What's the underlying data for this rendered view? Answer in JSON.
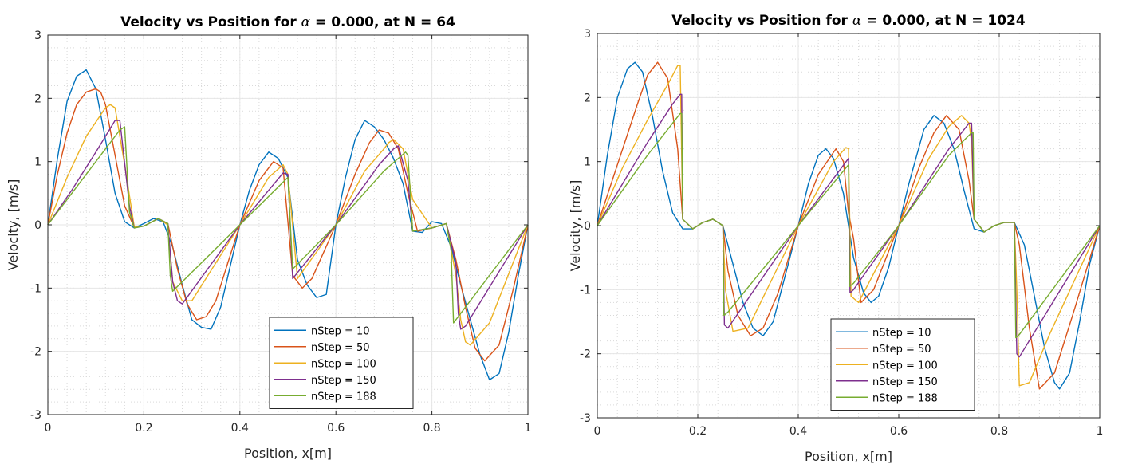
{
  "chart_data": [
    {
      "type": "line",
      "title_prefix": "Velocity vs Position for ",
      "title_alpha": "α",
      "title_suffix": " = 0.000, at N = 64",
      "xlabel": "Position, x[m]",
      "ylabel": "Velocity, [m/s]",
      "xlim": [
        0,
        1
      ],
      "ylim": [
        -3,
        3
      ],
      "xticks": [
        0,
        0.2,
        0.4,
        0.6,
        0.8,
        1
      ],
      "xtick_labels": [
        "0",
        "0.2",
        "0.4",
        "0.6",
        "0.8",
        "1"
      ],
      "yticks": [
        -3,
        -2,
        -1,
        0,
        1,
        2,
        3
      ],
      "ytick_labels": [
        "-3",
        "-2",
        "-1",
        "0",
        "1",
        "2",
        "3"
      ],
      "grid": true,
      "minor_grid": true,
      "legend_position": "bottom-right",
      "series": [
        {
          "name": "nStep = 10",
          "color": "#0072bd",
          "x": [
            0,
            0.02,
            0.04,
            0.06,
            0.08,
            0.1,
            0.12,
            0.14,
            0.16,
            0.18,
            0.2,
            0.22,
            0.24,
            0.26,
            0.28,
            0.3,
            0.32,
            0.34,
            0.36,
            0.38,
            0.4,
            0.42,
            0.44,
            0.46,
            0.48,
            0.5,
            0.52,
            0.54,
            0.56,
            0.58,
            0.6,
            0.62,
            0.64,
            0.66,
            0.68,
            0.7,
            0.72,
            0.74,
            0.76,
            0.78,
            0.8,
            0.82,
            0.84,
            0.86,
            0.88,
            0.9,
            0.92,
            0.94,
            0.96,
            0.98,
            1
          ],
          "y": [
            0,
            1.05,
            1.95,
            2.35,
            2.45,
            2.15,
            1.35,
            0.5,
            0.05,
            -0.05,
            0.02,
            0.1,
            0.05,
            -0.35,
            -0.95,
            -1.5,
            -1.62,
            -1.65,
            -1.3,
            -0.65,
            0,
            0.55,
            0.95,
            1.15,
            1.05,
            0.75,
            -0.55,
            -0.95,
            -1.15,
            -1.1,
            0,
            0.75,
            1.35,
            1.65,
            1.55,
            1.35,
            1.05,
            0.65,
            -0.1,
            -0.12,
            0.05,
            0.02,
            -0.35,
            -0.95,
            -1.5,
            -2.05,
            -2.45,
            -2.35,
            -1.7,
            -0.8,
            0
          ]
        },
        {
          "name": "nStep = 50",
          "color": "#d95319",
          "x": [
            0,
            0.02,
            0.04,
            0.06,
            0.08,
            0.1,
            0.11,
            0.12,
            0.14,
            0.16,
            0.18,
            0.2,
            0.23,
            0.25,
            0.27,
            0.29,
            0.31,
            0.33,
            0.35,
            0.4,
            0.44,
            0.47,
            0.49,
            0.51,
            0.53,
            0.55,
            0.6,
            0.64,
            0.67,
            0.69,
            0.71,
            0.73,
            0.75,
            0.77,
            0.8,
            0.83,
            0.85,
            0.87,
            0.89,
            0.91,
            0.94,
            0.97,
            1
          ],
          "y": [
            0,
            0.8,
            1.45,
            1.9,
            2.1,
            2.15,
            2.1,
            1.9,
            1.1,
            0.3,
            -0.04,
            -0.02,
            0.1,
            0.02,
            -0.7,
            -1.25,
            -1.5,
            -1.45,
            -1.2,
            0,
            0.7,
            1.0,
            0.9,
            -0.8,
            -1.0,
            -0.85,
            0,
            0.8,
            1.3,
            1.5,
            1.45,
            1.2,
            0.5,
            -0.1,
            -0.05,
            0.02,
            -0.55,
            -1.3,
            -1.95,
            -2.15,
            -1.9,
            -1.0,
            0
          ]
        },
        {
          "name": "nStep = 100",
          "color": "#edb120",
          "x": [
            0,
            0.04,
            0.08,
            0.12,
            0.13,
            0.14,
            0.16,
            0.18,
            0.2,
            0.23,
            0.25,
            0.26,
            0.28,
            0.3,
            0.4,
            0.46,
            0.49,
            0.5,
            0.52,
            0.6,
            0.66,
            0.7,
            0.71,
            0.72,
            0.74,
            0.76,
            0.8,
            0.83,
            0.85,
            0.86,
            0.87,
            0.88,
            0.92,
            1
          ],
          "y": [
            0,
            0.75,
            1.4,
            1.85,
            1.9,
            1.85,
            0.95,
            -0.03,
            -0.02,
            0.1,
            0.0,
            -0.9,
            -1.2,
            -1.2,
            0,
            0.75,
            0.95,
            0.8,
            -0.85,
            0,
            0.85,
            1.2,
            1.3,
            1.35,
            1.2,
            0.4,
            -0.05,
            0.02,
            -0.8,
            -1.5,
            -1.85,
            -1.9,
            -1.55,
            0
          ]
        },
        {
          "name": "nStep = 150",
          "color": "#7e2f8e",
          "x": [
            0,
            0.05,
            0.1,
            0.14,
            0.15,
            0.17,
            0.18,
            0.2,
            0.23,
            0.25,
            0.26,
            0.27,
            0.28,
            0.4,
            0.49,
            0.5,
            0.51,
            0.6,
            0.69,
            0.72,
            0.73,
            0.75,
            0.76,
            0.8,
            0.83,
            0.85,
            0.855,
            0.86,
            0.87,
            1
          ],
          "y": [
            0,
            0.55,
            1.15,
            1.65,
            1.65,
            0.3,
            -0.05,
            -0.02,
            0.1,
            0.02,
            -0.9,
            -1.2,
            -1.25,
            0,
            0.82,
            0.8,
            -0.85,
            0,
            0.95,
            1.2,
            1.25,
            0.7,
            -0.1,
            -0.05,
            0.02,
            -0.6,
            -1.4,
            -1.65,
            -1.6,
            0
          ]
        },
        {
          "name": "nStep = 188",
          "color": "#77ac30",
          "x": [
            0,
            0.05,
            0.1,
            0.15,
            0.16,
            0.17,
            0.18,
            0.2,
            0.23,
            0.25,
            0.255,
            0.26,
            0.4,
            0.5,
            0.51,
            0.6,
            0.7,
            0.745,
            0.75,
            0.76,
            0.8,
            0.83,
            0.84,
            0.845,
            1
          ],
          "y": [
            0,
            0.5,
            1.0,
            1.5,
            1.55,
            0.2,
            -0.05,
            -0.02,
            0.1,
            0.02,
            -0.8,
            -1.05,
            0,
            0.75,
            -0.7,
            0,
            0.85,
            1.15,
            1.1,
            -0.1,
            -0.05,
            0.02,
            -0.4,
            -1.55,
            0
          ]
        }
      ]
    },
    {
      "type": "line",
      "title_prefix": "Velocity vs Position for ",
      "title_alpha": "α",
      "title_suffix": " = 0.000, at N = 1024",
      "xlabel": "Position, x[m]",
      "ylabel": "Velocity, [m/s]",
      "xlim": [
        0,
        1
      ],
      "ylim": [
        -3,
        3
      ],
      "xticks": [
        0,
        0.2,
        0.4,
        0.6,
        0.8,
        1
      ],
      "xtick_labels": [
        "0",
        "0.2",
        "0.4",
        "0.6",
        "0.8",
        "1"
      ],
      "yticks": [
        -3,
        -2,
        -1,
        0,
        1,
        2,
        3
      ],
      "ytick_labels": [
        "-3",
        "-2",
        "-1",
        "0",
        "1",
        "2",
        "3"
      ],
      "grid": true,
      "minor_grid": true,
      "legend_position": "bottom-right",
      "series": [
        {
          "name": "nStep = 10",
          "color": "#0072bd",
          "x": [
            0,
            0.02,
            0.04,
            0.06,
            0.075,
            0.09,
            0.11,
            0.13,
            0.15,
            0.17,
            0.19,
            0.21,
            0.23,
            0.25,
            0.27,
            0.29,
            0.31,
            0.33,
            0.35,
            0.37,
            0.4,
            0.42,
            0.44,
            0.455,
            0.47,
            0.49,
            0.51,
            0.53,
            0.545,
            0.56,
            0.58,
            0.6,
            0.62,
            0.65,
            0.67,
            0.69,
            0.71,
            0.73,
            0.75,
            0.77,
            0.79,
            0.81,
            0.83,
            0.85,
            0.87,
            0.89,
            0.91,
            0.92,
            0.94,
            0.96,
            0.98,
            1
          ],
          "y": [
            0,
            1.1,
            2.0,
            2.45,
            2.55,
            2.4,
            1.7,
            0.85,
            0.2,
            -0.05,
            -0.05,
            0.05,
            0.1,
            0.0,
            -0.6,
            -1.2,
            -1.6,
            -1.72,
            -1.5,
            -0.9,
            0,
            0.65,
            1.1,
            1.2,
            1.05,
            0.5,
            -0.5,
            -1.05,
            -1.2,
            -1.1,
            -0.65,
            0,
            0.65,
            1.5,
            1.72,
            1.6,
            1.2,
            0.55,
            -0.05,
            -0.1,
            0.0,
            0.05,
            0.05,
            -0.3,
            -1.1,
            -1.9,
            -2.45,
            -2.55,
            -2.3,
            -1.5,
            -0.6,
            0
          ]
        },
        {
          "name": "nStep = 50",
          "color": "#d95319",
          "x": [
            0,
            0.04,
            0.08,
            0.1,
            0.12,
            0.14,
            0.16,
            0.17,
            0.19,
            0.21,
            0.23,
            0.25,
            0.26,
            0.28,
            0.305,
            0.33,
            0.36,
            0.4,
            0.44,
            0.475,
            0.49,
            0.5,
            0.51,
            0.525,
            0.55,
            0.6,
            0.64,
            0.67,
            0.695,
            0.72,
            0.74,
            0.75,
            0.77,
            0.79,
            0.81,
            0.83,
            0.84,
            0.86,
            0.88,
            0.91,
            0.95,
            1
          ],
          "y": [
            0,
            0.95,
            1.9,
            2.35,
            2.55,
            2.3,
            1.2,
            0.1,
            -0.05,
            0.05,
            0.1,
            0.0,
            -0.7,
            -1.4,
            -1.72,
            -1.6,
            -1.05,
            0,
            0.8,
            1.2,
            1.0,
            0.2,
            -0.2,
            -1.2,
            -1.0,
            0,
            0.9,
            1.45,
            1.72,
            1.5,
            0.7,
            0.1,
            -0.1,
            0.0,
            0.05,
            0.05,
            -0.3,
            -1.6,
            -2.55,
            -2.3,
            -1.3,
            0
          ]
        },
        {
          "name": "nStep = 100",
          "color": "#edb120",
          "x": [
            0,
            0.05,
            0.1,
            0.14,
            0.16,
            0.165,
            0.17,
            0.19,
            0.21,
            0.23,
            0.25,
            0.255,
            0.27,
            0.3,
            0.4,
            0.47,
            0.495,
            0.5,
            0.505,
            0.52,
            0.6,
            0.66,
            0.7,
            0.725,
            0.74,
            0.745,
            0.75,
            0.77,
            0.79,
            0.81,
            0.83,
            0.835,
            0.84,
            0.86,
            0.9,
            1
          ],
          "y": [
            0,
            0.9,
            1.65,
            2.2,
            2.5,
            2.5,
            0.1,
            -0.05,
            0.05,
            0.1,
            0.0,
            -1.0,
            -1.65,
            -1.6,
            0,
            1.0,
            1.22,
            1.2,
            -1.1,
            -1.2,
            0,
            1.05,
            1.55,
            1.72,
            1.6,
            1.3,
            0.1,
            -0.1,
            0.0,
            0.05,
            0.05,
            -1.0,
            -2.5,
            -2.45,
            -1.7,
            0
          ]
        },
        {
          "name": "nStep = 150",
          "color": "#7e2f8e",
          "x": [
            0,
            0.05,
            0.1,
            0.15,
            0.165,
            0.168,
            0.17,
            0.19,
            0.21,
            0.23,
            0.25,
            0.253,
            0.26,
            0.4,
            0.5,
            0.503,
            0.51,
            0.6,
            0.7,
            0.74,
            0.745,
            0.75,
            0.77,
            0.79,
            0.81,
            0.83,
            0.835,
            0.84,
            1
          ],
          "y": [
            0,
            0.65,
            1.3,
            1.9,
            2.05,
            2.05,
            0.1,
            -0.05,
            0.05,
            0.1,
            0.0,
            -1.55,
            -1.6,
            0,
            1.05,
            -1.05,
            -1.0,
            0,
            1.2,
            1.6,
            1.6,
            0.1,
            -0.1,
            0.0,
            0.05,
            0.05,
            -2.0,
            -2.05,
            0
          ]
        },
        {
          "name": "nStep = 188",
          "color": "#77ac30",
          "x": [
            0,
            0.05,
            0.1,
            0.15,
            0.165,
            0.168,
            0.17,
            0.19,
            0.21,
            0.23,
            0.25,
            0.252,
            0.26,
            0.4,
            0.5,
            0.502,
            0.51,
            0.6,
            0.7,
            0.745,
            0.748,
            0.75,
            0.77,
            0.79,
            0.81,
            0.83,
            0.833,
            0.84,
            1
          ],
          "y": [
            0,
            0.55,
            1.1,
            1.6,
            1.75,
            1.75,
            0.1,
            -0.05,
            0.05,
            0.1,
            0.0,
            -1.4,
            -1.35,
            0,
            0.95,
            -0.95,
            -0.9,
            0,
            1.1,
            1.45,
            1.45,
            0.1,
            -0.1,
            0.0,
            0.05,
            0.05,
            -1.75,
            -1.7,
            0
          ]
        }
      ]
    }
  ]
}
